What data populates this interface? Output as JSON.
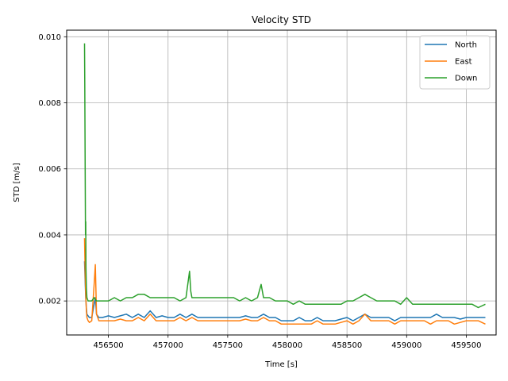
{
  "chart_data": {
    "type": "line",
    "title": "Velocity STD",
    "xlabel": "Time [s]",
    "ylabel": "STD [m/s]",
    "xlim": [
      456150,
      459750
    ],
    "ylim": [
      0.00097,
      0.0102
    ],
    "xticks": [
      456500,
      457000,
      457500,
      458000,
      458500,
      459000,
      459500
    ],
    "yticks": [
      0.002,
      0.004,
      0.006,
      0.008,
      0.01
    ],
    "xtick_labels": [
      "456500",
      "457000",
      "457500",
      "458000",
      "458500",
      "459000",
      "459500"
    ],
    "ytick_labels": [
      "0.002",
      "0.004",
      "0.006",
      "0.008",
      "0.010"
    ],
    "grid": true,
    "legend_position": "top-right",
    "series": [
      {
        "name": "North",
        "color": "#1f77b4",
        "x": [
          456300,
          456305,
          456310,
          456315,
          456320,
          456330,
          456340,
          456360,
          456380,
          456390,
          456400,
          456420,
          456450,
          456500,
          456550,
          456600,
          456650,
          456700,
          456750,
          456800,
          456850,
          456900,
          456950,
          457000,
          457050,
          457100,
          457150,
          457200,
          457250,
          457300,
          457350,
          457400,
          457450,
          457500,
          457550,
          457600,
          457650,
          457700,
          457750,
          457800,
          457850,
          457900,
          457950,
          458000,
          458050,
          458100,
          458150,
          458200,
          458250,
          458300,
          458350,
          458400,
          458450,
          458500,
          458550,
          458600,
          458650,
          458700,
          458750,
          458800,
          458850,
          458900,
          458950,
          459000,
          459050,
          459100,
          459150,
          459200,
          459250,
          459300,
          459350,
          459400,
          459450,
          459500,
          459550,
          459600,
          459660
        ],
        "values": [
          0.0032,
          0.0026,
          0.0021,
          0.0018,
          0.0016,
          0.00155,
          0.0015,
          0.0015,
          0.0019,
          0.0021,
          0.0016,
          0.0015,
          0.0015,
          0.00155,
          0.0015,
          0.00155,
          0.0016,
          0.0015,
          0.0016,
          0.0015,
          0.0017,
          0.0015,
          0.00155,
          0.0015,
          0.0015,
          0.0016,
          0.0015,
          0.0016,
          0.0015,
          0.0015,
          0.0015,
          0.0015,
          0.0015,
          0.0015,
          0.0015,
          0.0015,
          0.00155,
          0.0015,
          0.0015,
          0.0016,
          0.0015,
          0.0015,
          0.0014,
          0.0014,
          0.0014,
          0.0015,
          0.0014,
          0.0014,
          0.0015,
          0.0014,
          0.0014,
          0.0014,
          0.00145,
          0.0015,
          0.0014,
          0.0015,
          0.0016,
          0.0015,
          0.0015,
          0.0015,
          0.0015,
          0.0014,
          0.0015,
          0.0015,
          0.0015,
          0.0015,
          0.0015,
          0.0015,
          0.0016,
          0.0015,
          0.0015,
          0.0015,
          0.00145,
          0.0015,
          0.0015,
          0.0015,
          0.0015
        ]
      },
      {
        "name": "East",
        "color": "#ff7f0e",
        "x": [
          456300,
          456305,
          456310,
          456315,
          456320,
          456330,
          456340,
          456360,
          456380,
          456390,
          456400,
          456420,
          456450,
          456500,
          456550,
          456600,
          456650,
          456700,
          456750,
          456800,
          456850,
          456900,
          456950,
          457000,
          457050,
          457100,
          457150,
          457200,
          457250,
          457300,
          457350,
          457400,
          457450,
          457500,
          457550,
          457600,
          457650,
          457700,
          457750,
          457800,
          457850,
          457900,
          457950,
          458000,
          458050,
          458100,
          458150,
          458200,
          458250,
          458300,
          458350,
          458400,
          458450,
          458500,
          458550,
          458600,
          458650,
          458700,
          458750,
          458800,
          458850,
          458900,
          458950,
          459000,
          459050,
          459100,
          459150,
          459200,
          459250,
          459300,
          459350,
          459400,
          459450,
          459500,
          459550,
          459600,
          459660
        ],
        "values": [
          0.0039,
          0.0028,
          0.0022,
          0.0017,
          0.0015,
          0.0014,
          0.00135,
          0.0014,
          0.0025,
          0.0031,
          0.0016,
          0.0014,
          0.0014,
          0.0014,
          0.0014,
          0.00145,
          0.0014,
          0.0014,
          0.0015,
          0.0014,
          0.0016,
          0.0014,
          0.0014,
          0.0014,
          0.0014,
          0.0015,
          0.0014,
          0.0015,
          0.0014,
          0.0014,
          0.0014,
          0.0014,
          0.0014,
          0.0014,
          0.0014,
          0.0014,
          0.00145,
          0.0014,
          0.0014,
          0.0015,
          0.0014,
          0.0014,
          0.0013,
          0.0013,
          0.0013,
          0.0013,
          0.0013,
          0.0013,
          0.0014,
          0.0013,
          0.0013,
          0.0013,
          0.00135,
          0.0014,
          0.0013,
          0.0014,
          0.0016,
          0.0014,
          0.0014,
          0.0014,
          0.0014,
          0.0013,
          0.0014,
          0.0014,
          0.0014,
          0.0014,
          0.0014,
          0.0013,
          0.0014,
          0.0014,
          0.0014,
          0.0013,
          0.00135,
          0.0014,
          0.0014,
          0.0014,
          0.0013
        ]
      },
      {
        "name": "Down",
        "color": "#2ca02c",
        "x": [
          456300,
          456302,
          456305,
          456308,
          456310,
          456312,
          456315,
          456320,
          456330,
          456340,
          456360,
          456380,
          456400,
          456420,
          456450,
          456500,
          456550,
          456600,
          456650,
          456700,
          456750,
          456800,
          456850,
          456900,
          456950,
          457000,
          457050,
          457100,
          457150,
          457180,
          457190,
          457200,
          457250,
          457300,
          457350,
          457400,
          457450,
          457500,
          457550,
          457600,
          457650,
          457700,
          457750,
          457780,
          457800,
          457850,
          457900,
          457950,
          458000,
          458050,
          458100,
          458150,
          458200,
          458250,
          458300,
          458350,
          458400,
          458450,
          458500,
          458550,
          458600,
          458650,
          458700,
          458750,
          458800,
          458850,
          458900,
          458950,
          459000,
          459050,
          459100,
          459150,
          459200,
          459250,
          459300,
          459350,
          459400,
          459450,
          459500,
          459550,
          459600,
          459660
        ],
        "values": [
          0.0098,
          0.0086,
          0.006,
          0.004,
          0.0044,
          0.003,
          0.0024,
          0.0021,
          0.002,
          0.002,
          0.002,
          0.0021,
          0.002,
          0.002,
          0.002,
          0.002,
          0.0021,
          0.002,
          0.0021,
          0.0021,
          0.0022,
          0.0022,
          0.0021,
          0.0021,
          0.0021,
          0.0021,
          0.0021,
          0.002,
          0.0021,
          0.0029,
          0.0023,
          0.0021,
          0.0021,
          0.0021,
          0.0021,
          0.0021,
          0.0021,
          0.0021,
          0.0021,
          0.002,
          0.0021,
          0.002,
          0.0021,
          0.0025,
          0.0021,
          0.0021,
          0.002,
          0.002,
          0.002,
          0.0019,
          0.002,
          0.0019,
          0.0019,
          0.0019,
          0.0019,
          0.0019,
          0.0019,
          0.0019,
          0.002,
          0.002,
          0.0021,
          0.0022,
          0.0021,
          0.002,
          0.002,
          0.002,
          0.002,
          0.0019,
          0.0021,
          0.0019,
          0.0019,
          0.0019,
          0.0019,
          0.0019,
          0.0019,
          0.0019,
          0.0019,
          0.0019,
          0.0019,
          0.0019,
          0.0018,
          0.0019
        ]
      }
    ]
  }
}
